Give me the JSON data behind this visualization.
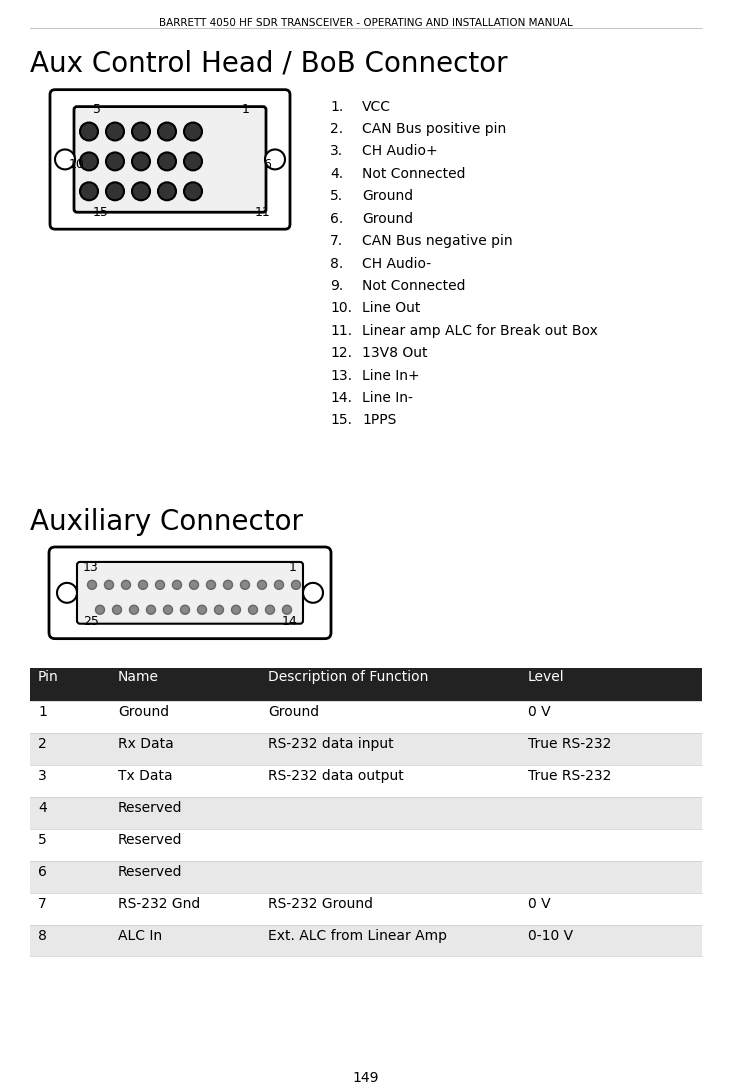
{
  "page_title": "BARRETT 4050 HF SDR TRANSCEIVER - OPERATING AND INSTALLATION MANUAL",
  "section1_title": "Aux Control Head / BoB Connector",
  "section2_title": "Auxiliary Connector",
  "bob_pins": [
    "VCC",
    "CAN Bus positive pin",
    "CH Audio+",
    "Not Connected",
    "Ground",
    "Ground",
    "CAN Bus negative pin",
    "CH Audio-",
    "Not Connected",
    "Line Out",
    "Linear amp ALC for Break out Box",
    "13V8 Out",
    "Line In+",
    "Line In-",
    "1PPS"
  ],
  "table_header": [
    "Pin",
    "Name",
    "Description of Function",
    "Level"
  ],
  "table_header_bg": "#222222",
  "table_header_fg": "#ffffff",
  "table_rows": [
    [
      "1",
      "Ground",
      "Ground",
      "0 V"
    ],
    [
      "2",
      "Rx Data",
      "RS-232 data input",
      "True RS-232"
    ],
    [
      "3",
      "Tx Data",
      "RS-232 data output",
      "True RS-232"
    ],
    [
      "4",
      "Reserved",
      "",
      ""
    ],
    [
      "5",
      "Reserved",
      "",
      ""
    ],
    [
      "6",
      "Reserved",
      "",
      ""
    ],
    [
      "7",
      "RS-232 Gnd",
      "RS-232 Ground",
      "0 V"
    ],
    [
      "8",
      "ALC In",
      "Ext. ALC from Linear Amp",
      "0-10 V"
    ]
  ],
  "table_row_even_bg": "#ffffff",
  "table_row_odd_bg": "#e8e8e8",
  "page_number": "149",
  "bg_color": "#ffffff",
  "text_color": "#000000"
}
